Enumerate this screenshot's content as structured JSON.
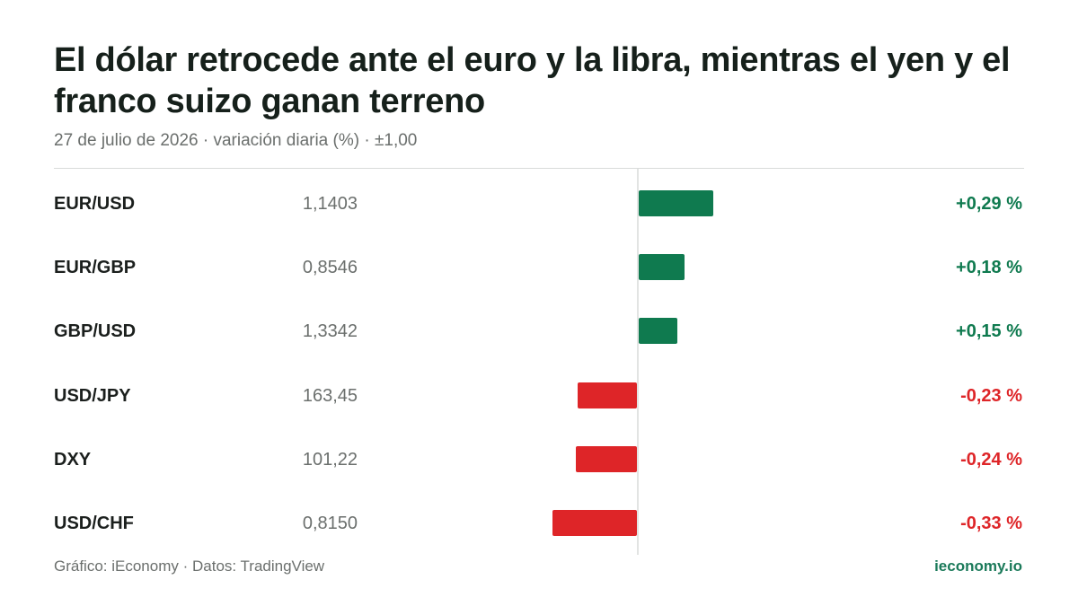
{
  "title": "El dólar retrocede ante el euro y la libra, mientras el yen y el franco suizo ganan terreno",
  "subtitle": "27 de julio de 2026 · variación diaria (%) · ±1,00",
  "footer": {
    "source": "Gráfico: iEconomy · Datos: TradingView",
    "brand": "ieconomy.io"
  },
  "colors": {
    "positive": "#0f7a4f",
    "negative": "#de2528"
  },
  "chart_data": {
    "type": "bar",
    "orientation": "horizontal",
    "categories": [
      "EUR/USD",
      "EUR/GBP",
      "GBP/USD",
      "USD/JPY",
      "DXY",
      "USD/CHF"
    ],
    "prices": [
      "1,1403",
      "0,8546",
      "1,3342",
      "163,45",
      "101,22",
      "0,8150"
    ],
    "values": [
      0.29,
      0.18,
      0.15,
      -0.23,
      -0.24,
      -0.33
    ],
    "labels": [
      "+0,29 %",
      "+0,18 %",
      "+0,15 %",
      "-0,23 %",
      "-0,24 %",
      "-0,33 %"
    ],
    "xlim": [
      -1,
      1
    ]
  }
}
